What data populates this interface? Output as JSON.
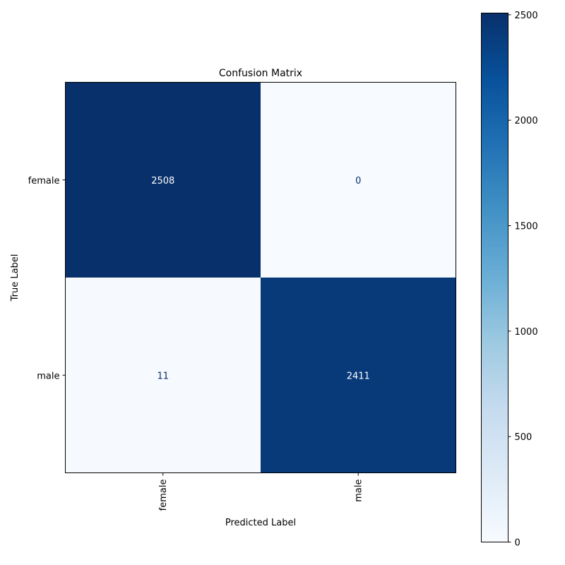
{
  "chart_data": {
    "type": "heatmap",
    "title": "Confusion Matrix",
    "xlabel": "Predicted Label",
    "ylabel": "True Label",
    "x_categories": [
      "female",
      "male"
    ],
    "y_categories": [
      "female",
      "male"
    ],
    "values": [
      [
        2508,
        0
      ],
      [
        11,
        2411
      ]
    ],
    "colormap": "Blues",
    "colorbar": {
      "min": 0,
      "max": 2508,
      "ticks": [
        0,
        500,
        1000,
        1500,
        2000,
        2500
      ]
    },
    "text_color_dark_cell": "#ffffff",
    "text_color_light_cell": "#08306b"
  }
}
